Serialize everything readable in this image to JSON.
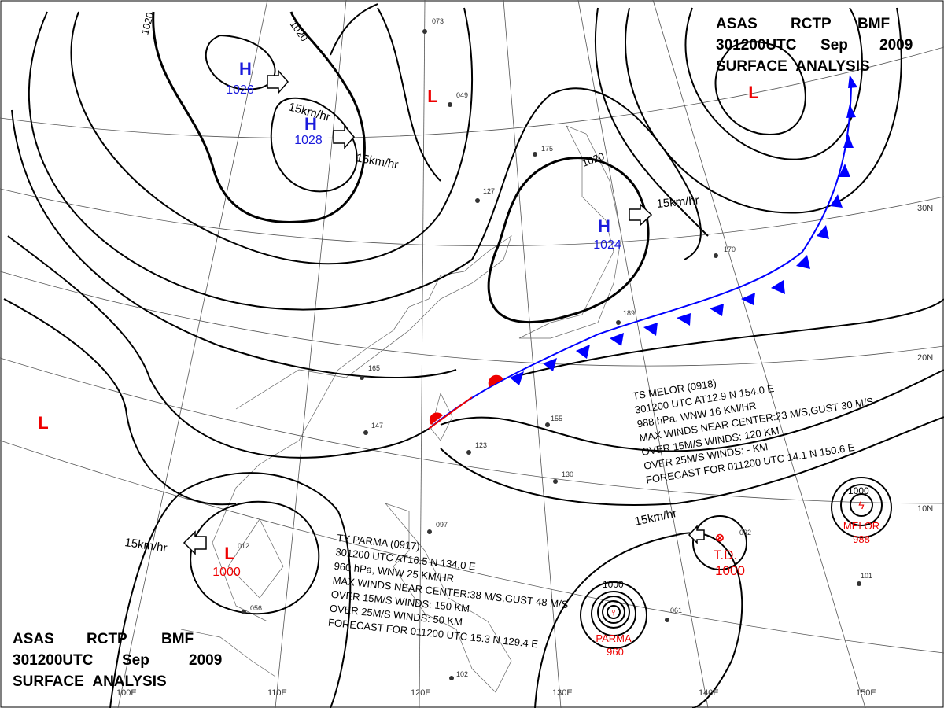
{
  "header": {
    "line1": [
      "ASAS",
      "RCTP",
      "BMF"
    ],
    "line2": [
      "301200UTC",
      "Sep",
      "2009"
    ],
    "line3": "SURFACE ANALYSIS"
  },
  "grid_labels": {
    "lat": [
      "30N",
      "20N",
      "10N"
    ],
    "lon": [
      "100E",
      "110E",
      "120E",
      "130E",
      "140E",
      "150E"
    ]
  },
  "pressure_centers": [
    {
      "symbol": "H",
      "value": 1026
    },
    {
      "symbol": "H",
      "value": 1028
    },
    {
      "symbol": "H",
      "value": 1024
    },
    {
      "symbol": "L",
      "value": 1000
    },
    {
      "symbol": "L"
    },
    {
      "symbol": "L"
    },
    {
      "symbol": "L"
    }
  ],
  "isobar_labels": [
    1020,
    1020,
    1020
  ],
  "wind_speed_labels": [
    "15km/hr",
    "15km/hr",
    "15km/hr",
    "15km/hr",
    "15km/hr"
  ],
  "melor_advisory": [
    "TS MELOR (0918)",
    "301200 UTC AT12.9 N 154.0 E",
    "988 hPa, WNW 16 KM/HR",
    "MAX WINDS NEAR CENTER:23 M/S,GUST 30 M/S",
    "OVER 15M/S WINDS: 120 KM",
    "OVER 25M/S WINDS: - KM",
    "FORECAST FOR 011200 UTC 14.1 N 150.6 E"
  ],
  "parma_advisory": [
    "TY PARMA (0917)",
    "301200 UTC AT16.5 N 134.0 E",
    "960 hPa, WNW 25 KM/HR",
    "MAX WINDS NEAR CENTER:38 M/S,GUST 48 M/S",
    "OVER 15M/S WINDS: 150 KM",
    "OVER 25M/S WINDS: 50 KM",
    "FORECAST FOR 011200 UTC 15.3 N 129.4 E"
  ],
  "storms": {
    "melor": {
      "isobar": 1000,
      "name": "MELOR",
      "pressure": 988
    },
    "parma": {
      "isobar": 1000,
      "name": "PARMA",
      "pressure": 960
    },
    "td": {
      "name": "T.D.",
      "pressure": 1000
    }
  },
  "stations": [
    "073",
    "049",
    "175",
    "127",
    "165",
    "189",
    "170",
    "147",
    "123",
    "130",
    "097",
    "061",
    "101",
    "102",
    "056",
    "012",
    "092",
    "155"
  ]
}
